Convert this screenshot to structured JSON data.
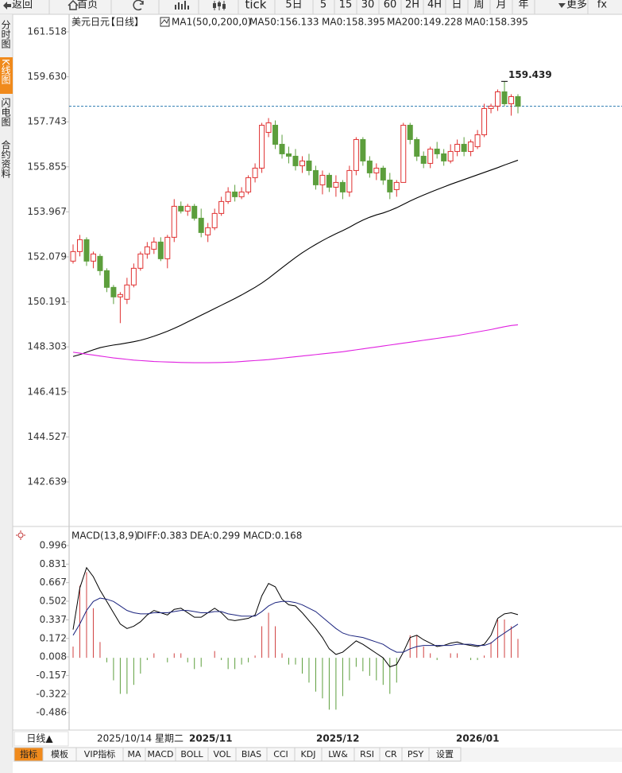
{
  "toolbar": [
    "返回",
    "首页",
    "tick",
    "5日",
    "5",
    "15",
    "30",
    "60",
    "2H",
    "4H",
    "日",
    "周",
    "月",
    "年",
    "更多",
    "fx"
  ],
  "sidebar": [
    "分时图",
    "K线图",
    "闪电图",
    "合约资料"
  ],
  "chart_data": [
    {
      "type": "candlestick",
      "title": "美元日元",
      "period": "【日线】",
      "indicator": "MA1(50,0,200,0)",
      "legend": [
        {
          "text": "MA50:156.133",
          "color": "#000000"
        },
        {
          "text": "MA0:158.395",
          "color": "#1a237e"
        },
        {
          "text": "MA200:149.228",
          "color": "#e020e0"
        },
        {
          "text": "MA0:158.395",
          "color": "#f08a1c"
        }
      ],
      "up_color": "#e03131",
      "down_color": "#5c9e3c",
      "open": [
        151.9,
        152.3,
        152.8,
        151.9,
        152.1,
        151.5,
        150.8,
        150.4,
        150.3,
        150.9,
        151.6,
        152.2,
        152.4,
        152.7,
        152.0,
        152.9,
        154.2,
        154.0,
        154.2,
        153.7,
        153.0,
        153.3,
        153.9,
        154.4,
        154.8,
        154.6,
        154.8,
        155.4,
        155.8,
        157.3,
        157.6,
        156.8,
        156.4,
        156.3,
        155.9,
        156.1,
        155.7,
        155.1,
        155.5,
        155.0,
        155.2,
        154.8,
        155.7,
        157.0,
        156.1,
        155.6,
        155.8,
        155.3,
        154.9,
        155.2,
        157.6,
        157.0,
        156.3,
        156.0,
        156.6,
        156.4,
        156.1,
        156.5,
        156.8,
        156.5,
        156.7,
        157.2,
        158.3,
        158.4,
        159.0,
        158.5,
        158.8
      ],
      "high": [
        152.6,
        153.0,
        152.9,
        152.3,
        152.2,
        151.6,
        150.9,
        150.6,
        151.2,
        151.8,
        152.3,
        152.7,
        152.9,
        152.9,
        153.0,
        154.5,
        154.4,
        154.3,
        154.3,
        154.1,
        153.5,
        154.1,
        154.6,
        155.0,
        155.1,
        155.0,
        155.5,
        156.0,
        157.7,
        157.9,
        157.8,
        157.2,
        156.7,
        156.6,
        156.3,
        156.4,
        155.9,
        155.7,
        155.6,
        155.5,
        155.3,
        155.9,
        157.1,
        157.1,
        156.3,
        156.0,
        155.9,
        155.6,
        155.3,
        157.7,
        157.7,
        157.1,
        156.5,
        156.7,
        156.9,
        156.6,
        156.8,
        157.0,
        157.1,
        157.0,
        157.4,
        158.5,
        158.5,
        159.1,
        159.439,
        158.9,
        158.9
      ],
      "low": [
        151.8,
        152.1,
        151.7,
        151.6,
        151.3,
        150.6,
        150.1,
        149.3,
        150.1,
        150.8,
        151.5,
        152.0,
        152.2,
        151.9,
        151.6,
        152.7,
        153.9,
        153.8,
        153.6,
        152.9,
        152.7,
        153.2,
        153.8,
        154.3,
        154.4,
        154.5,
        154.7,
        155.2,
        155.6,
        157.1,
        156.6,
        156.2,
        156.0,
        155.7,
        155.6,
        155.5,
        154.9,
        154.7,
        154.8,
        154.6,
        154.5,
        154.6,
        155.5,
        155.9,
        155.4,
        155.3,
        155.1,
        154.5,
        154.6,
        155.2,
        156.8,
        156.1,
        155.8,
        155.8,
        156.2,
        155.9,
        156.0,
        156.3,
        156.3,
        156.3,
        156.6,
        157.1,
        158.1,
        158.2,
        158.4,
        158.0,
        158.1
      ],
      "close": [
        152.3,
        152.8,
        151.9,
        152.2,
        151.5,
        150.8,
        150.4,
        150.5,
        150.9,
        151.6,
        152.2,
        152.5,
        152.7,
        152.0,
        152.9,
        154.2,
        154.0,
        154.2,
        153.7,
        153.1,
        153.3,
        153.9,
        154.4,
        154.8,
        154.6,
        154.8,
        155.4,
        155.8,
        157.6,
        157.7,
        156.8,
        156.4,
        156.3,
        155.9,
        156.1,
        155.7,
        155.1,
        155.5,
        155.0,
        155.2,
        154.8,
        155.7,
        157.0,
        156.1,
        155.6,
        155.8,
        155.3,
        154.8,
        155.2,
        157.6,
        157.0,
        156.3,
        156.0,
        156.6,
        156.4,
        156.1,
        156.5,
        156.8,
        156.5,
        156.9,
        157.2,
        158.3,
        158.4,
        159.0,
        158.5,
        158.8,
        158.395
      ],
      "lines": [
        {
          "color": "#000000",
          "values": [
            147.9,
            147.98,
            148.08,
            148.18,
            148.27,
            148.33,
            148.38,
            148.42,
            148.47,
            148.52,
            148.58,
            148.66,
            148.75,
            148.85,
            148.96,
            149.08,
            149.21,
            149.35,
            149.49,
            149.63,
            149.77,
            149.91,
            150.05,
            150.19,
            150.33,
            150.48,
            150.64,
            150.8,
            150.98,
            151.18,
            151.4,
            151.62,
            151.84,
            152.05,
            152.25,
            152.43,
            152.6,
            152.76,
            152.91,
            153.05,
            153.18,
            153.32,
            153.48,
            153.62,
            153.74,
            153.84,
            153.92,
            154.02,
            154.14,
            154.28,
            154.42,
            154.55,
            154.67,
            154.79,
            154.9,
            155.01,
            155.12,
            155.22,
            155.32,
            155.42,
            155.52,
            155.62,
            155.72,
            155.82,
            155.93,
            156.03,
            156.133
          ]
        },
        {
          "color": "#e020e0",
          "values": [
            148.08,
            148.04,
            148.0,
            147.96,
            147.92,
            147.88,
            147.84,
            147.81,
            147.78,
            147.75,
            147.73,
            147.71,
            147.69,
            147.68,
            147.67,
            147.66,
            147.65,
            147.645,
            147.64,
            147.64,
            147.64,
            147.645,
            147.65,
            147.66,
            147.67,
            147.69,
            147.71,
            147.73,
            147.75,
            147.77,
            147.8,
            147.83,
            147.86,
            147.89,
            147.92,
            147.95,
            147.98,
            148.01,
            148.04,
            148.07,
            148.1,
            148.14,
            148.18,
            148.22,
            148.26,
            148.3,
            148.34,
            148.38,
            148.42,
            148.46,
            148.5,
            148.54,
            148.58,
            148.62,
            148.66,
            148.7,
            148.74,
            148.78,
            148.83,
            148.88,
            148.93,
            148.98,
            149.03,
            149.09,
            149.15,
            149.2,
            149.228
          ]
        }
      ],
      "ylim": [
        140.838,
        162.118
      ],
      "yticks": [
        161.518,
        {
          "value": 159.63,
          "label": "159.630"
        },
        157.743,
        155.855,
        153.967,
        152.079,
        150.191,
        148.303,
        146.415,
        144.527,
        142.639
      ],
      "last_price_line": true,
      "grid": false
    },
    {
      "type": "macd",
      "title": "MACD(13,8,9)",
      "legend": [
        {
          "text": "DIFF:0.383",
          "color": "#000000"
        },
        {
          "text": "DEA:0.299",
          "color": "#1a237e"
        },
        {
          "text": "MACD:0.168",
          "color": "#e020e0"
        }
      ],
      "up_color": "#d04040",
      "down_color": "#5c9e3c",
      "histogram": [
        0.1,
        0.64,
        0.76,
        0.44,
        0.14,
        -0.04,
        -0.2,
        -0.32,
        -0.32,
        -0.24,
        -0.14,
        -0.02,
        0.04,
        0.0,
        -0.04,
        0.04,
        0.04,
        -0.04,
        -0.1,
        -0.08,
        0.0,
        0.06,
        -0.02,
        -0.1,
        -0.1,
        -0.06,
        -0.04,
        0.02,
        0.28,
        0.4,
        0.28,
        0.04,
        -0.06,
        -0.06,
        -0.14,
        -0.22,
        -0.3,
        -0.36,
        -0.46,
        -0.46,
        -0.34,
        -0.2,
        -0.08,
        -0.12,
        -0.16,
        -0.2,
        -0.24,
        -0.32,
        -0.22,
        0.0,
        0.2,
        0.2,
        0.1,
        0.04,
        -0.02,
        0.0,
        0.04,
        0.04,
        0.0,
        -0.02,
        -0.02,
        0.02,
        0.14,
        0.34,
        0.34,
        0.28,
        0.168
      ],
      "series": [
        {
          "color": "#000000",
          "values": [
            0.25,
            0.62,
            0.8,
            0.72,
            0.6,
            0.5,
            0.4,
            0.3,
            0.26,
            0.28,
            0.32,
            0.38,
            0.42,
            0.4,
            0.38,
            0.43,
            0.44,
            0.4,
            0.36,
            0.36,
            0.4,
            0.44,
            0.4,
            0.34,
            0.33,
            0.34,
            0.35,
            0.38,
            0.55,
            0.66,
            0.63,
            0.52,
            0.47,
            0.46,
            0.4,
            0.33,
            0.26,
            0.18,
            0.08,
            0.03,
            0.05,
            0.1,
            0.15,
            0.12,
            0.08,
            0.04,
            0.0,
            -0.08,
            -0.06,
            0.05,
            0.18,
            0.2,
            0.16,
            0.13,
            0.1,
            0.11,
            0.13,
            0.14,
            0.12,
            0.11,
            0.1,
            0.12,
            0.2,
            0.35,
            0.39,
            0.4,
            0.383
          ]
        },
        {
          "color": "#1a237e",
          "values": [
            0.2,
            0.3,
            0.42,
            0.5,
            0.53,
            0.52,
            0.5,
            0.46,
            0.42,
            0.4,
            0.39,
            0.39,
            0.4,
            0.4,
            0.4,
            0.41,
            0.42,
            0.42,
            0.41,
            0.4,
            0.4,
            0.41,
            0.41,
            0.39,
            0.38,
            0.37,
            0.37,
            0.37,
            0.41,
            0.46,
            0.49,
            0.5,
            0.5,
            0.49,
            0.47,
            0.44,
            0.41,
            0.36,
            0.31,
            0.26,
            0.22,
            0.2,
            0.19,
            0.18,
            0.16,
            0.14,
            0.12,
            0.08,
            0.05,
            0.05,
            0.08,
            0.1,
            0.11,
            0.11,
            0.11,
            0.11,
            0.11,
            0.12,
            0.12,
            0.12,
            0.11,
            0.11,
            0.13,
            0.18,
            0.22,
            0.26,
            0.299
          ]
        }
      ],
      "ylim": [
        -0.641,
        1.123
      ],
      "yticks": [
        0.996,
        0.831,
        0.667,
        0.502,
        0.337,
        0.172,
        0.008,
        -0.157,
        -0.322,
        -0.486
      ]
    }
  ],
  "date_axis": {
    "button": "日线▲",
    "labels": [
      "2025/10/14 星期二",
      "2025/11",
      "2025/12",
      "2026/01"
    ]
  },
  "tabs": [
    "指标",
    "模板",
    "VIP指标",
    "MA",
    "MACD",
    "BOLL",
    "VOL",
    "BIAS",
    "CCI",
    "KDJ",
    "LW&",
    "RSI",
    "CR",
    "PSY",
    "设置"
  ]
}
